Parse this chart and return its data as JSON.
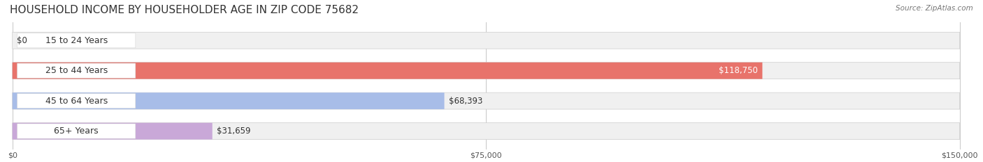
{
  "title": "HOUSEHOLD INCOME BY HOUSEHOLDER AGE IN ZIP CODE 75682",
  "source": "Source: ZipAtlas.com",
  "categories": [
    "15 to 24 Years",
    "25 to 44 Years",
    "45 to 64 Years",
    "65+ Years"
  ],
  "values": [
    0,
    118750,
    68393,
    31659
  ],
  "bar_colors": [
    "#f5c9a0",
    "#e8736b",
    "#a8bde8",
    "#c9a8d8"
  ],
  "bar_bg_color": "#f0f0f0",
  "label_bg_color": "#ffffff",
  "xmax": 150000,
  "xticks": [
    0,
    75000,
    150000
  ],
  "xtick_labels": [
    "$0",
    "$75,000",
    "$150,000"
  ],
  "value_labels": [
    "$0",
    "$118,750",
    "$68,393",
    "$31,659"
  ],
  "figsize": [
    14.06,
    2.33
  ],
  "dpi": 100,
  "title_fontsize": 11,
  "label_fontsize": 9,
  "value_fontsize": 8.5,
  "bar_height": 0.55,
  "bg_color": "#ffffff",
  "grid_color": "#cccccc"
}
